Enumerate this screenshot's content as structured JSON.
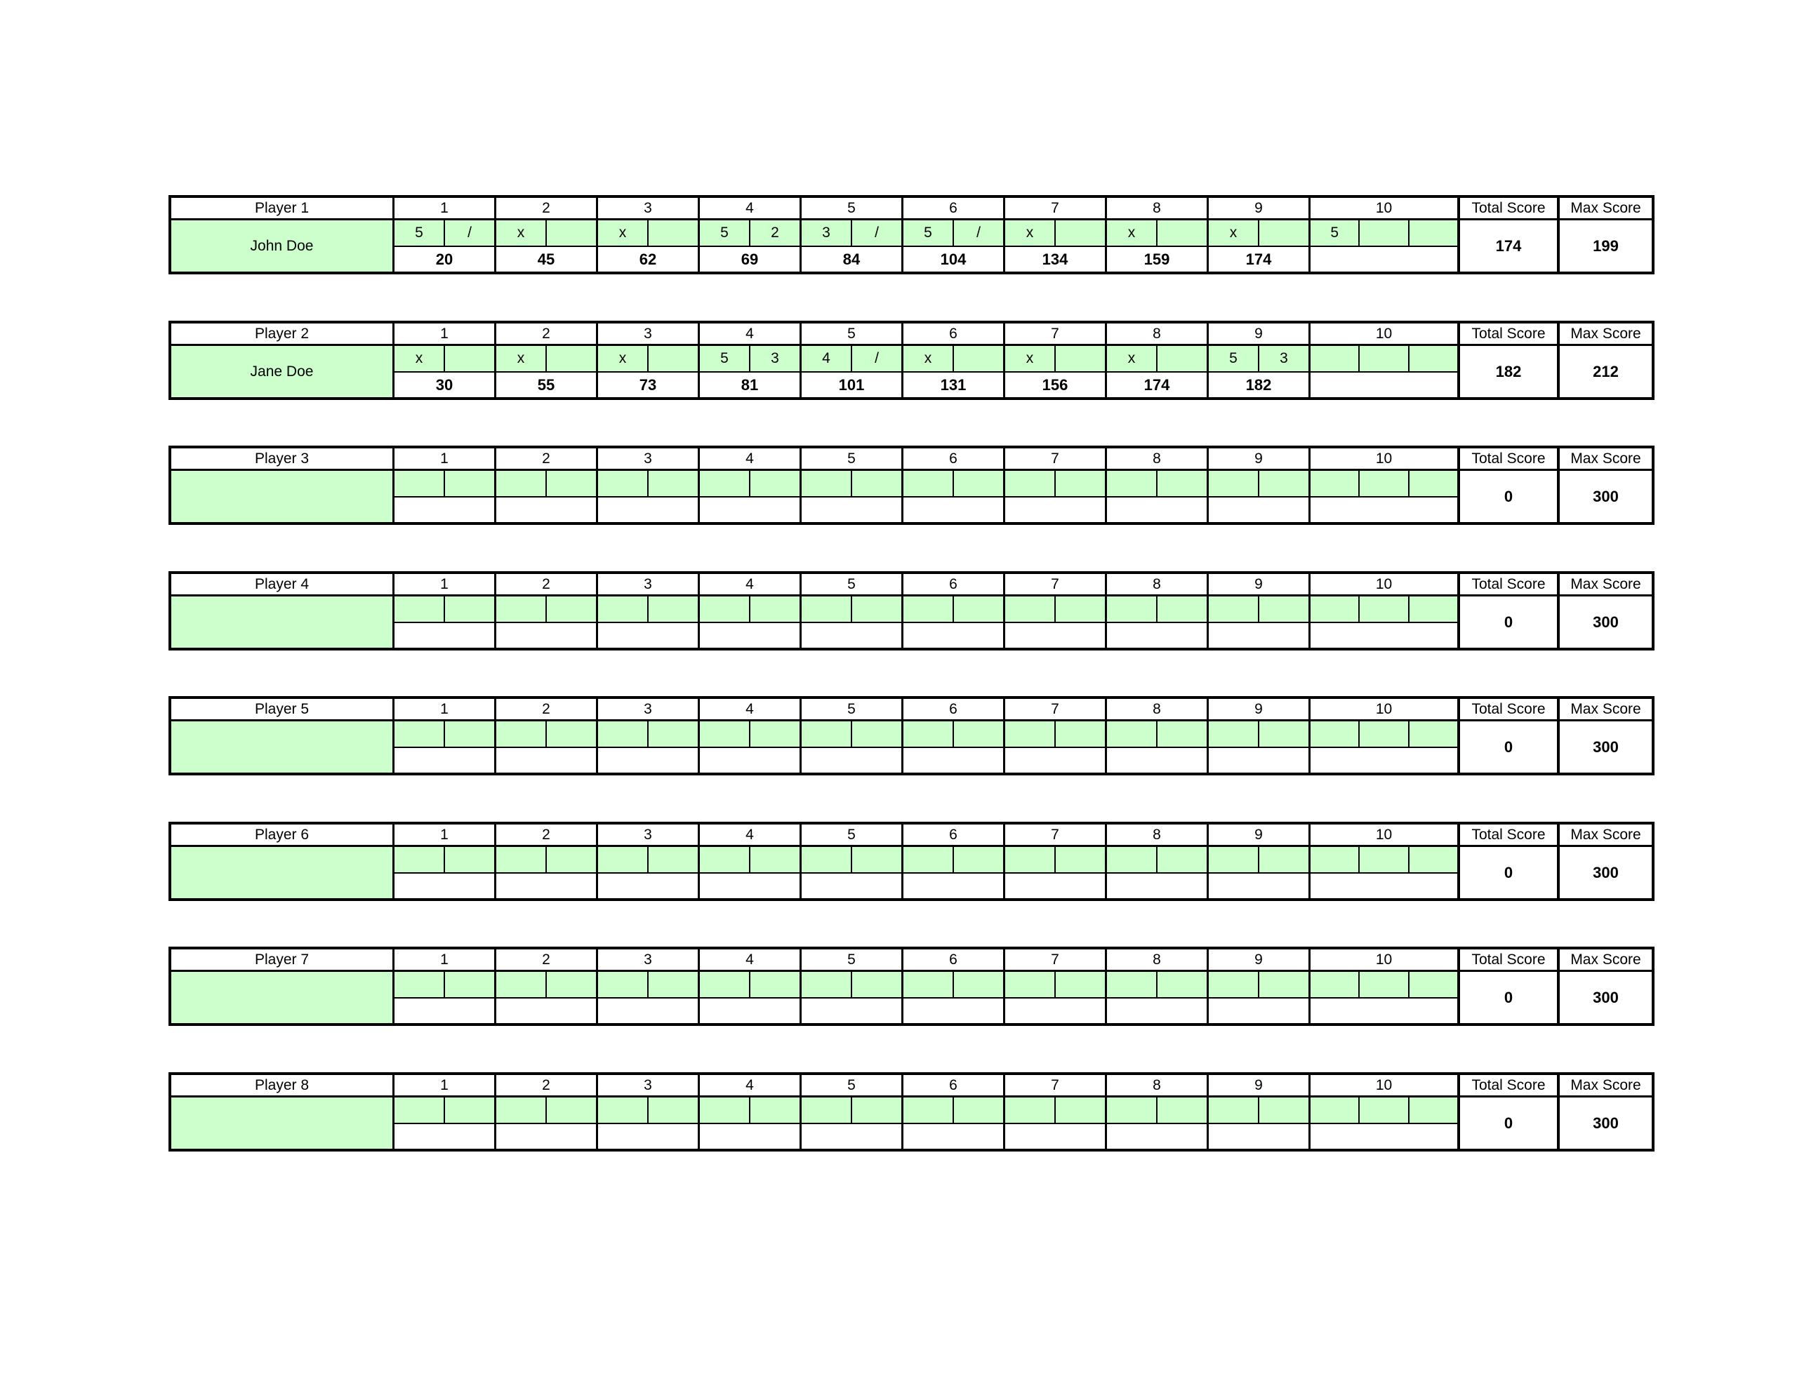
{
  "colors": {
    "cell_green": "#ccffcc",
    "border": "#000000",
    "background": "#ffffff"
  },
  "labels": {
    "total_score": "Total Score",
    "max_score": "Max Score"
  },
  "frame_headers": [
    "1",
    "2",
    "3",
    "4",
    "5",
    "6",
    "7",
    "8",
    "9",
    "10"
  ],
  "players": [
    {
      "label": "Player 1",
      "name": "John Doe",
      "frames": [
        [
          "5",
          "/"
        ],
        [
          "x",
          ""
        ],
        [
          "x",
          ""
        ],
        [
          "5",
          "2"
        ],
        [
          "3",
          "/"
        ],
        [
          "5",
          "/"
        ],
        [
          "x",
          ""
        ],
        [
          "x",
          ""
        ],
        [
          "x",
          ""
        ],
        [
          "5",
          "",
          ""
        ]
      ],
      "cumulative": [
        "20",
        "45",
        "62",
        "69",
        "84",
        "104",
        "134",
        "159",
        "174",
        ""
      ],
      "total": "174",
      "max": "199"
    },
    {
      "label": "Player 2",
      "name": "Jane Doe",
      "frames": [
        [
          "x",
          ""
        ],
        [
          "x",
          ""
        ],
        [
          "x",
          ""
        ],
        [
          "5",
          "3"
        ],
        [
          "4",
          "/"
        ],
        [
          "x",
          ""
        ],
        [
          "x",
          ""
        ],
        [
          "x",
          ""
        ],
        [
          "5",
          "3"
        ],
        [
          "",
          "",
          ""
        ]
      ],
      "cumulative": [
        "30",
        "55",
        "73",
        "81",
        "101",
        "131",
        "156",
        "174",
        "182",
        ""
      ],
      "total": "182",
      "max": "212"
    },
    {
      "label": "Player 3",
      "name": "",
      "frames": [
        [
          "",
          ""
        ],
        [
          "",
          ""
        ],
        [
          "",
          ""
        ],
        [
          "",
          ""
        ],
        [
          "",
          ""
        ],
        [
          "",
          ""
        ],
        [
          "",
          ""
        ],
        [
          "",
          ""
        ],
        [
          "",
          ""
        ],
        [
          "",
          "",
          ""
        ]
      ],
      "cumulative": [
        "",
        "",
        "",
        "",
        "",
        "",
        "",
        "",
        "",
        ""
      ],
      "total": "0",
      "max": "300"
    },
    {
      "label": "Player 4",
      "name": "",
      "frames": [
        [
          "",
          ""
        ],
        [
          "",
          ""
        ],
        [
          "",
          ""
        ],
        [
          "",
          ""
        ],
        [
          "",
          ""
        ],
        [
          "",
          ""
        ],
        [
          "",
          ""
        ],
        [
          "",
          ""
        ],
        [
          "",
          ""
        ],
        [
          "",
          "",
          ""
        ]
      ],
      "cumulative": [
        "",
        "",
        "",
        "",
        "",
        "",
        "",
        "",
        "",
        ""
      ],
      "total": "0",
      "max": "300"
    },
    {
      "label": "Player 5",
      "name": "",
      "frames": [
        [
          "",
          ""
        ],
        [
          "",
          ""
        ],
        [
          "",
          ""
        ],
        [
          "",
          ""
        ],
        [
          "",
          ""
        ],
        [
          "",
          ""
        ],
        [
          "",
          ""
        ],
        [
          "",
          ""
        ],
        [
          "",
          ""
        ],
        [
          "",
          "",
          ""
        ]
      ],
      "cumulative": [
        "",
        "",
        "",
        "",
        "",
        "",
        "",
        "",
        "",
        ""
      ],
      "total": "0",
      "max": "300"
    },
    {
      "label": "Player 6",
      "name": "",
      "frames": [
        [
          "",
          ""
        ],
        [
          "",
          ""
        ],
        [
          "",
          ""
        ],
        [
          "",
          ""
        ],
        [
          "",
          ""
        ],
        [
          "",
          ""
        ],
        [
          "",
          ""
        ],
        [
          "",
          ""
        ],
        [
          "",
          ""
        ],
        [
          "",
          "",
          ""
        ]
      ],
      "cumulative": [
        "",
        "",
        "",
        "",
        "",
        "",
        "",
        "",
        "",
        ""
      ],
      "total": "0",
      "max": "300"
    },
    {
      "label": "Player 7",
      "name": "",
      "frames": [
        [
          "",
          ""
        ],
        [
          "",
          ""
        ],
        [
          "",
          ""
        ],
        [
          "",
          ""
        ],
        [
          "",
          ""
        ],
        [
          "",
          ""
        ],
        [
          "",
          ""
        ],
        [
          "",
          ""
        ],
        [
          "",
          ""
        ],
        [
          "",
          "",
          ""
        ]
      ],
      "cumulative": [
        "",
        "",
        "",
        "",
        "",
        "",
        "",
        "",
        "",
        ""
      ],
      "total": "0",
      "max": "300"
    },
    {
      "label": "Player 8",
      "name": "",
      "frames": [
        [
          "",
          ""
        ],
        [
          "",
          ""
        ],
        [
          "",
          ""
        ],
        [
          "",
          ""
        ],
        [
          "",
          ""
        ],
        [
          "",
          ""
        ],
        [
          "",
          ""
        ],
        [
          "",
          ""
        ],
        [
          "",
          ""
        ],
        [
          "",
          "",
          ""
        ]
      ],
      "cumulative": [
        "",
        "",
        "",
        "",
        "",
        "",
        "",
        "",
        "",
        ""
      ],
      "total": "0",
      "max": "300"
    }
  ]
}
